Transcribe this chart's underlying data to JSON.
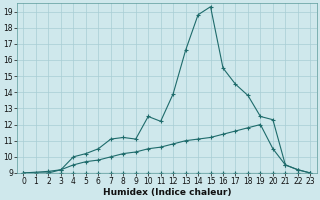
{
  "background_color": "#cfe8ec",
  "grid_color": "#a8cdd4",
  "line_color": "#1e6b6b",
  "xlabel": "Humidex (Indice chaleur)",
  "xlim": [
    -0.5,
    23.5
  ],
  "ylim": [
    9,
    19.5
  ],
  "yticks": [
    9,
    10,
    11,
    12,
    13,
    14,
    15,
    16,
    17,
    18,
    19
  ],
  "xticks": [
    0,
    1,
    2,
    3,
    4,
    5,
    6,
    7,
    8,
    9,
    10,
    11,
    12,
    13,
    14,
    15,
    16,
    17,
    18,
    19,
    20,
    21,
    22,
    23
  ],
  "line1_x": [
    0,
    1,
    2,
    3,
    4,
    5,
    6,
    7,
    8,
    9,
    10,
    11,
    12,
    13,
    14,
    15,
    16,
    17,
    18,
    19,
    20,
    21,
    22,
    23
  ],
  "line1_y": [
    9.0,
    9.0,
    9.0,
    9.0,
    9.0,
    9.0,
    9.0,
    9.0,
    9.0,
    9.0,
    9.0,
    9.0,
    9.0,
    9.0,
    9.0,
    9.0,
    9.0,
    9.0,
    9.0,
    9.0,
    9.0,
    9.0,
    9.0,
    9.0
  ],
  "line2_x": [
    0,
    2,
    3,
    4,
    5,
    6,
    7,
    8,
    9,
    10,
    11,
    12,
    13,
    14,
    15,
    16,
    17,
    18,
    19,
    20,
    21,
    22,
    23
  ],
  "line2_y": [
    9.0,
    9.1,
    9.2,
    9.5,
    9.7,
    9.8,
    10.0,
    10.2,
    10.3,
    10.5,
    10.6,
    10.8,
    11.0,
    11.1,
    11.2,
    11.4,
    11.6,
    11.8,
    12.0,
    10.5,
    9.5,
    9.2,
    9.0
  ],
  "line3_x": [
    0,
    2,
    3,
    4,
    5,
    6,
    7,
    8,
    9,
    10,
    11,
    12,
    13,
    14,
    15,
    16,
    17,
    18,
    19,
    20,
    21,
    22,
    23
  ],
  "line3_y": [
    9.0,
    9.0,
    9.2,
    10.0,
    10.2,
    10.5,
    11.1,
    11.2,
    11.1,
    12.5,
    12.2,
    13.9,
    16.6,
    18.8,
    19.3,
    15.5,
    14.5,
    13.8,
    12.5,
    12.3,
    9.5,
    9.2,
    9.0
  ],
  "xlabel_fontsize": 6.5,
  "tick_fontsize": 5.5
}
